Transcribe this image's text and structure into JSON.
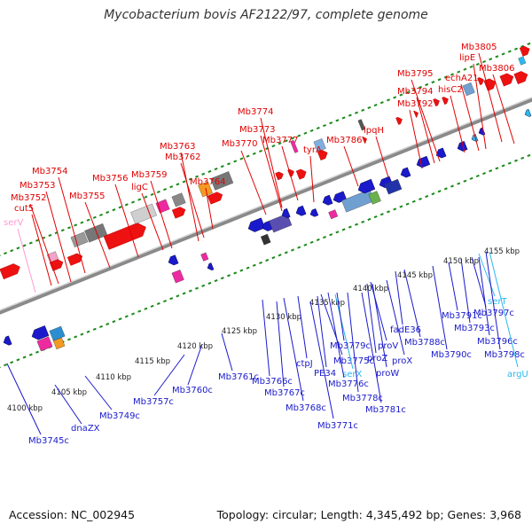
{
  "title": "Mycobacterium bovis AF2122/97, complete genome",
  "footer": {
    "accession": "Accession: NC_002945",
    "stats": "Topology: circular; Length: 4,345,492 bp; Genes: 3,968"
  },
  "colors": {
    "forward_label": "#e00000",
    "reverse_label": "#1a1acc",
    "rna_forward": "#ff9ad0",
    "rna_reverse": "#2ab8ee",
    "backbone": "#888888",
    "tick_green": "#1a8a1a"
  },
  "ticks": [
    {
      "label": "4100 kbp"
    },
    {
      "label": "4105 kbp"
    },
    {
      "label": "4110 kbp"
    },
    {
      "label": "4115 kbp"
    },
    {
      "label": "4120 kbp"
    },
    {
      "label": "4125 kbp"
    },
    {
      "label": "4130 kbp"
    },
    {
      "label": "4135 kbp"
    },
    {
      "label": "4140 kbp"
    },
    {
      "label": "4145 kbp"
    },
    {
      "label": "4150 kbp"
    },
    {
      "label": "4155 kbp"
    }
  ],
  "forward_labels": [
    {
      "text": "serV",
      "kind": "rna"
    },
    {
      "text": "cut5",
      "kind": "cds"
    },
    {
      "text": "Mb3752",
      "kind": "cds"
    },
    {
      "text": "Mb3753",
      "kind": "cds"
    },
    {
      "text": "Mb3754",
      "kind": "cds"
    },
    {
      "text": "Mb3755",
      "kind": "cds"
    },
    {
      "text": "Mb3756",
      "kind": "cds"
    },
    {
      "text": "ligC",
      "kind": "cds"
    },
    {
      "text": "Mb3759",
      "kind": "cds"
    },
    {
      "text": "Mb3762",
      "kind": "cds"
    },
    {
      "text": "Mb3763",
      "kind": "cds"
    },
    {
      "text": "Mb3764",
      "kind": "cds"
    },
    {
      "text": "Mb3770",
      "kind": "cds"
    },
    {
      "text": "Mb3773",
      "kind": "cds"
    },
    {
      "text": "Mb3774",
      "kind": "cds"
    },
    {
      "text": "Mb3777",
      "kind": "cds"
    },
    {
      "text": "tyrA",
      "kind": "cds"
    },
    {
      "text": "Mb3786",
      "kind": "cds"
    },
    {
      "text": "lpqH",
      "kind": "cds"
    },
    {
      "text": "Mb3792",
      "kind": "cds"
    },
    {
      "text": "Mb3794",
      "kind": "cds"
    },
    {
      "text": "Mb3795",
      "kind": "cds"
    },
    {
      "text": "hisC2",
      "kind": "cds"
    },
    {
      "text": "echA21",
      "kind": "cds"
    },
    {
      "text": "lipE",
      "kind": "cds"
    },
    {
      "text": "Mb3805",
      "kind": "cds"
    },
    {
      "text": "Mb3806",
      "kind": "cds"
    }
  ],
  "reverse_labels": [
    {
      "text": "Mb3745c",
      "kind": "cds"
    },
    {
      "text": "dnaZX",
      "kind": "cds"
    },
    {
      "text": "Mb3749c",
      "kind": "cds"
    },
    {
      "text": "Mb3757c",
      "kind": "cds"
    },
    {
      "text": "Mb3760c",
      "kind": "cds"
    },
    {
      "text": "Mb3761c",
      "kind": "cds"
    },
    {
      "text": "Mb3766c",
      "kind": "cds"
    },
    {
      "text": "Mb3767c",
      "kind": "cds"
    },
    {
      "text": "Mb3768c",
      "kind": "cds"
    },
    {
      "text": "ctpJ",
      "kind": "cds"
    },
    {
      "text": "Mb3771c",
      "kind": "cds"
    },
    {
      "text": "PE34",
      "kind": "cds"
    },
    {
      "text": "Mb3775c",
      "kind": "cds"
    },
    {
      "text": "serX",
      "kind": "rna"
    },
    {
      "text": "Mb3776c",
      "kind": "cds"
    },
    {
      "text": "Mb3779c",
      "kind": "cds"
    },
    {
      "text": "Mb3778c",
      "kind": "cds"
    },
    {
      "text": "Mb3781c",
      "kind": "cds"
    },
    {
      "text": "proZ",
      "kind": "cds"
    },
    {
      "text": "proV",
      "kind": "cds"
    },
    {
      "text": "proW",
      "kind": "cds"
    },
    {
      "text": "proX",
      "kind": "cds"
    },
    {
      "text": "fadE36",
      "kind": "cds"
    },
    {
      "text": "Mb3788c",
      "kind": "cds"
    },
    {
      "text": "Mb3790c",
      "kind": "cds"
    },
    {
      "text": "Mb3791c",
      "kind": "cds"
    },
    {
      "text": "Mb3793c",
      "kind": "cds"
    },
    {
      "text": "Mb3796c",
      "kind": "cds"
    },
    {
      "text": "Mb3797c",
      "kind": "cds"
    },
    {
      "text": "serT",
      "kind": "rna"
    },
    {
      "text": "Mb3798c",
      "kind": "cds"
    },
    {
      "text": "argU",
      "kind": "rna"
    }
  ]
}
